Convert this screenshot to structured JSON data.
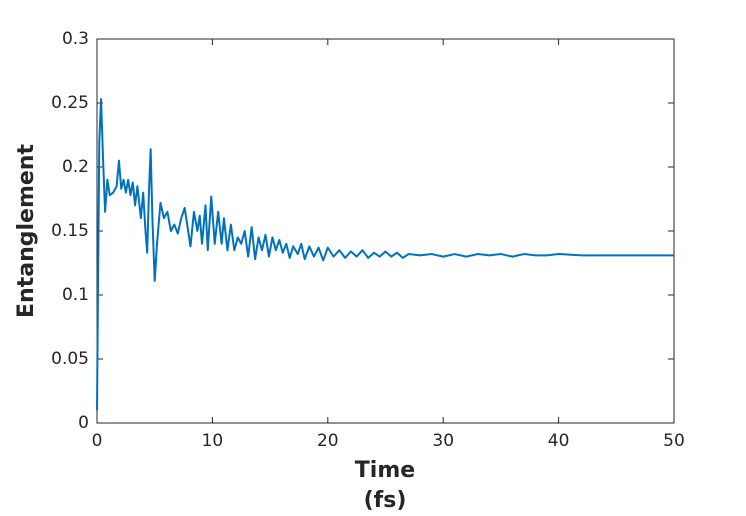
{
  "chart_data": {
    "type": "line",
    "xlabel": [
      "Time",
      "(fs)"
    ],
    "ylabel": "Entanglement",
    "x": [
      0,
      0.1,
      0.2,
      0.35,
      0.55,
      0.7,
      0.9,
      1.1,
      1.4,
      1.7,
      1.9,
      2.1,
      2.3,
      2.5,
      2.7,
      2.9,
      3.1,
      3.3,
      3.5,
      3.8,
      4.0,
      4.2,
      4.35,
      4.5,
      4.65,
      4.8,
      5.0,
      5.2,
      5.5,
      5.8,
      6.1,
      6.4,
      6.7,
      7.0,
      7.3,
      7.6,
      7.9,
      8.1,
      8.4,
      8.7,
      8.9,
      9.1,
      9.4,
      9.6,
      9.9,
      10.2,
      10.5,
      10.8,
      11.0,
      11.3,
      11.6,
      11.9,
      12.2,
      12.5,
      12.8,
      13.1,
      13.4,
      13.7,
      14.0,
      14.3,
      14.6,
      14.9,
      15.2,
      15.5,
      15.8,
      16.1,
      16.4,
      16.7,
      17.0,
      17.4,
      17.7,
      18.0,
      18.4,
      18.8,
      19.2,
      19.6,
      20.0,
      20.5,
      21.0,
      21.5,
      22.0,
      22.5,
      23.0,
      23.5,
      24.0,
      24.5,
      25.0,
      25.5,
      26.0,
      26.5,
      27,
      28,
      29,
      30,
      31,
      32,
      33,
      34,
      35,
      36,
      37,
      38,
      39,
      40,
      42,
      44,
      46,
      48,
      50
    ],
    "values": [
      0.01,
      0.12,
      0.22,
      0.253,
      0.2,
      0.165,
      0.19,
      0.178,
      0.18,
      0.185,
      0.205,
      0.183,
      0.19,
      0.18,
      0.19,
      0.178,
      0.188,
      0.17,
      0.185,
      0.16,
      0.18,
      0.15,
      0.133,
      0.18,
      0.214,
      0.16,
      0.111,
      0.14,
      0.172,
      0.16,
      0.165,
      0.15,
      0.155,
      0.148,
      0.16,
      0.168,
      0.15,
      0.138,
      0.165,
      0.15,
      0.162,
      0.14,
      0.17,
      0.135,
      0.177,
      0.14,
      0.165,
      0.14,
      0.16,
      0.135,
      0.155,
      0.135,
      0.145,
      0.14,
      0.15,
      0.13,
      0.153,
      0.128,
      0.145,
      0.135,
      0.147,
      0.13,
      0.145,
      0.135,
      0.143,
      0.133,
      0.14,
      0.129,
      0.138,
      0.132,
      0.14,
      0.128,
      0.138,
      0.13,
      0.137,
      0.127,
      0.137,
      0.13,
      0.135,
      0.129,
      0.134,
      0.13,
      0.135,
      0.129,
      0.133,
      0.13,
      0.134,
      0.13,
      0.133,
      0.129,
      0.132,
      0.131,
      0.132,
      0.13,
      0.132,
      0.13,
      0.132,
      0.131,
      0.132,
      0.13,
      0.132,
      0.131,
      0.131,
      0.132,
      0.131,
      0.131,
      0.131,
      0.131,
      0.131
    ],
    "color": "#0072bd",
    "xlim": [
      0,
      50
    ],
    "xticks": [
      0,
      10,
      20,
      30,
      40,
      50
    ],
    "ylim": [
      0,
      0.3
    ],
    "yticks": [
      0,
      0.05,
      0.1,
      0.15,
      0.2,
      0.25,
      0.3
    ]
  }
}
